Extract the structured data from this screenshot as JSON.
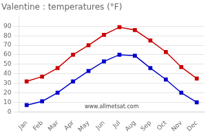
{
  "chart_data": {
    "type": "line",
    "title": "Valentine : temperatures (°F)",
    "categories": [
      "Jan",
      "Feb",
      "Mar",
      "Apr",
      "May",
      "Jun",
      "Jul",
      "Aug",
      "Sep",
      "Oct",
      "Nov",
      "Dec"
    ],
    "series": [
      {
        "color": "#cc0000",
        "values": [
          32,
          37,
          46,
          60,
          70,
          81,
          89,
          86,
          75,
          63,
          47,
          35
        ]
      },
      {
        "color": "#0000cc",
        "values": [
          7,
          11,
          20,
          32,
          43,
          53,
          60,
          59,
          46,
          34,
          20,
          10
        ]
      }
    ],
    "ylim": [
      0,
      100
    ],
    "yticks": [
      0,
      10,
      20,
      30,
      40,
      50,
      60,
      70,
      80,
      90
    ],
    "grid": "y",
    "marker": "square",
    "annotations": [
      "www.allmetsat.com"
    ]
  }
}
